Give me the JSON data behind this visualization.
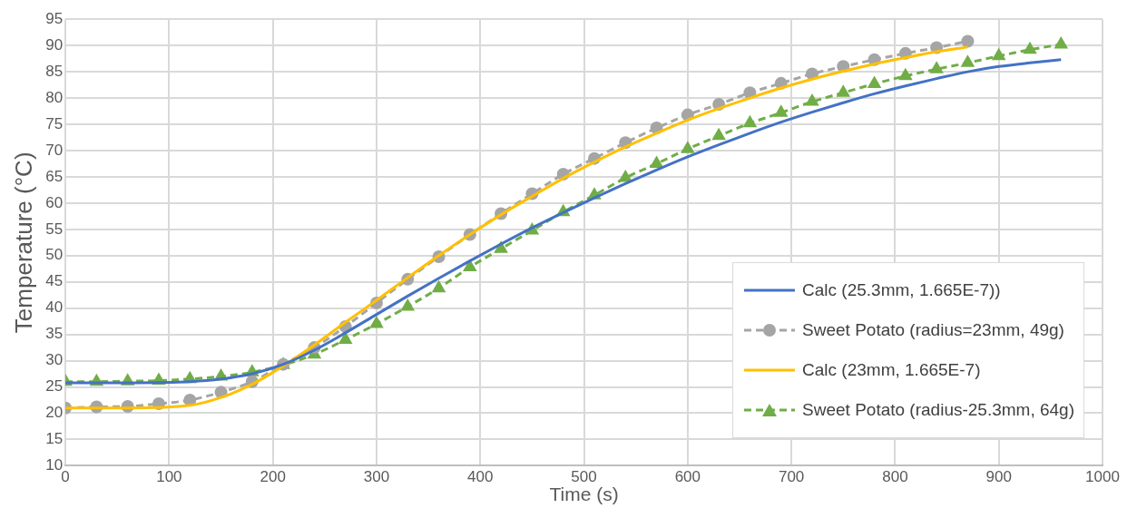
{
  "chart_data": {
    "type": "line",
    "xlabel": "Time (s)",
    "ylabel": "Temperature (°C)",
    "xlim": [
      0,
      1000
    ],
    "xticks": [
      0,
      100,
      200,
      300,
      400,
      500,
      600,
      700,
      800,
      900,
      1000
    ],
    "ylim": [
      10,
      95
    ],
    "yticks": [
      10,
      15,
      20,
      25,
      30,
      35,
      40,
      45,
      50,
      55,
      60,
      65,
      70,
      75,
      80,
      85,
      90,
      95
    ],
    "grid": true,
    "legend": "bottom right",
    "series": [
      {
        "name": "Calc (25.3mm, 1.665E-7))",
        "color": "#4472c4",
        "marker": "none",
        "line_style": "solid",
        "x": [
          0,
          60,
          120,
          150,
          180,
          210,
          240,
          270,
          300,
          330,
          360,
          390,
          420,
          450,
          480,
          510,
          540,
          570,
          600,
          630,
          660,
          690,
          720,
          750,
          780,
          810,
          840,
          870,
          900,
          930,
          960
        ],
        "values": [
          25.8,
          25.8,
          26,
          26.5,
          27.5,
          29.3,
          32,
          35.3,
          38.8,
          42.3,
          45.7,
          49,
          52.2,
          55.3,
          58.2,
          61,
          63.7,
          66.3,
          68.8,
          71.1,
          73.3,
          75.4,
          77.3,
          79.1,
          80.8,
          82.3,
          83.7,
          85,
          86,
          86.7,
          87.3
        ]
      },
      {
        "name": "Sweet Potato (radius=23mm, 49g)",
        "color": "#a5a5a5",
        "marker": "circle",
        "line_style": "dashed",
        "x": [
          0,
          30,
          60,
          90,
          120,
          150,
          180,
          210,
          240,
          270,
          300,
          330,
          360,
          390,
          420,
          450,
          480,
          510,
          540,
          570,
          600,
          630,
          660,
          690,
          720,
          750,
          780,
          810,
          840,
          870
        ],
        "values": [
          21,
          21.2,
          21.3,
          21.8,
          22.5,
          24,
          26,
          29.3,
          32.5,
          36.5,
          41,
          45.5,
          49.8,
          54,
          58,
          61.8,
          65.5,
          68.5,
          71.5,
          74.3,
          76.8,
          78.8,
          81,
          82.8,
          84.6,
          86,
          87.3,
          88.5,
          89.6,
          90.8
        ]
      },
      {
        "name": "Calc (23mm, 1.665E-7)",
        "color": "#ffc000",
        "marker": "none",
        "line_style": "solid",
        "x": [
          0,
          60,
          120,
          150,
          180,
          210,
          240,
          270,
          300,
          330,
          360,
          390,
          420,
          450,
          480,
          510,
          540,
          570,
          600,
          630,
          660,
          690,
          720,
          750,
          780,
          810,
          840,
          870
        ],
        "values": [
          21,
          21,
          21.5,
          23,
          25.5,
          29,
          33,
          37.3,
          41.5,
          45.8,
          50,
          54,
          57.8,
          61.3,
          64.7,
          67.8,
          70.7,
          73.3,
          75.8,
          78,
          80,
          81.9,
          83.6,
          85.1,
          86.5,
          87.7,
          88.8,
          89.7
        ]
      },
      {
        "name": "Sweet Potato (radius-25.3mm, 64g)",
        "color": "#70ad47",
        "marker": "triangle",
        "line_style": "dashed",
        "x": [
          0,
          30,
          60,
          90,
          120,
          150,
          180,
          210,
          240,
          270,
          300,
          330,
          360,
          390,
          420,
          450,
          480,
          510,
          540,
          570,
          600,
          630,
          660,
          690,
          720,
          750,
          780,
          810,
          840,
          870,
          900,
          930,
          960
        ],
        "values": [
          26,
          26,
          26.1,
          26.2,
          26.5,
          27,
          27.8,
          29.2,
          31.2,
          34,
          37,
          40.3,
          43.8,
          47.8,
          51.3,
          54.8,
          58.3,
          61.5,
          64.8,
          67.5,
          70.3,
          72.8,
          75.2,
          77.2,
          79.3,
          81,
          82.7,
          84.2,
          85.5,
          86.7,
          88,
          89.2,
          90.2
        ]
      }
    ]
  }
}
